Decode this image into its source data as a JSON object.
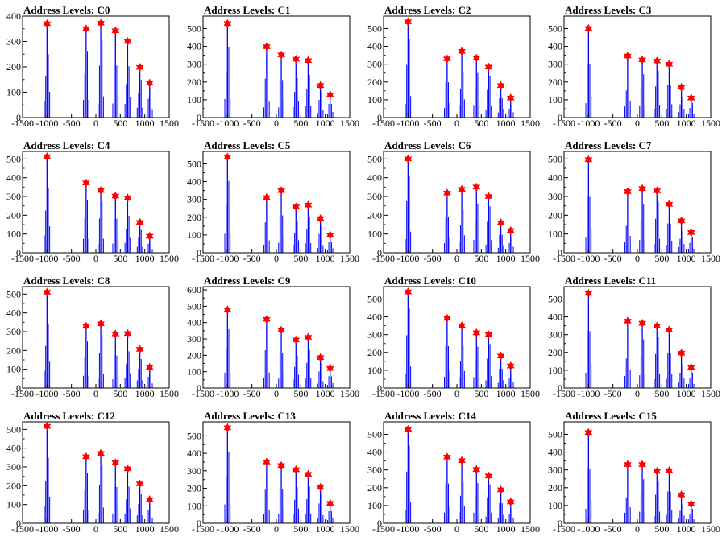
{
  "chart_data": [
    {
      "type": "histogram",
      "title": "Address Levels: C0",
      "xlim": [
        -1500,
        1500
      ],
      "ylim": [
        0,
        400
      ],
      "yticks": [
        0,
        100,
        200,
        300,
        400
      ],
      "xticks": [
        -1500,
        -1000,
        -500,
        0,
        500,
        1000,
        1500
      ],
      "xtick_labels": [
        "-1500",
        "-1000",
        "-500",
        "0",
        "500",
        "1000",
        "1500"
      ],
      "peaks": [
        {
          "x": -1000,
          "y": 370
        },
        {
          "x": -200,
          "y": 350
        },
        {
          "x": 100,
          "y": 372
        },
        {
          "x": 400,
          "y": 342
        },
        {
          "x": 650,
          "y": 300
        },
        {
          "x": 900,
          "y": 198
        },
        {
          "x": 1100,
          "y": 136
        }
      ]
    },
    {
      "type": "histogram",
      "title": "Address Levels: C1",
      "xlim": [
        -1500,
        1500
      ],
      "ylim": [
        0,
        570
      ],
      "yticks": [
        0,
        100,
        200,
        300,
        400,
        500
      ],
      "xticks": [
        -1500,
        -1000,
        -500,
        0,
        500,
        1000,
        1500
      ],
      "xtick_labels": [
        "-1500",
        "-1000",
        "-500",
        "0",
        "500",
        "1000",
        "1500"
      ],
      "peaks": [
        {
          "x": -1000,
          "y": 528
        },
        {
          "x": -200,
          "y": 398
        },
        {
          "x": 100,
          "y": 352
        },
        {
          "x": 400,
          "y": 328
        },
        {
          "x": 650,
          "y": 320
        },
        {
          "x": 900,
          "y": 180
        },
        {
          "x": 1100,
          "y": 128
        }
      ]
    },
    {
      "type": "histogram",
      "title": "Address Levels: C2",
      "xlim": [
        -1500,
        1500
      ],
      "ylim": [
        0,
        570
      ],
      "yticks": [
        0,
        100,
        200,
        300,
        400,
        500
      ],
      "xticks": [
        -1500,
        -1000,
        -500,
        0,
        500,
        1000,
        1500
      ],
      "xtick_labels": [
        "-1500",
        "-1000",
        "-500",
        "0",
        "500",
        "1000",
        "1500"
      ],
      "peaks": [
        {
          "x": -1000,
          "y": 538
        },
        {
          "x": -200,
          "y": 330
        },
        {
          "x": 100,
          "y": 372
        },
        {
          "x": 400,
          "y": 334
        },
        {
          "x": 650,
          "y": 284
        },
        {
          "x": 900,
          "y": 180
        },
        {
          "x": 1100,
          "y": 110
        }
      ]
    },
    {
      "type": "histogram",
      "title": "Address Levels: C3",
      "xlim": [
        -1500,
        1500
      ],
      "ylim": [
        0,
        570
      ],
      "yticks": [
        0,
        100,
        200,
        300,
        400,
        500
      ],
      "xticks": [
        -1500,
        -1000,
        -500,
        0,
        500,
        1000,
        1500
      ],
      "xtick_labels": [
        "-1500",
        "-1000",
        "-500",
        "0",
        "500",
        "1000",
        "1500"
      ],
      "peaks": [
        {
          "x": -1000,
          "y": 500
        },
        {
          "x": -200,
          "y": 346
        },
        {
          "x": 100,
          "y": 324
        },
        {
          "x": 400,
          "y": 318
        },
        {
          "x": 650,
          "y": 300
        },
        {
          "x": 900,
          "y": 170
        },
        {
          "x": 1100,
          "y": 110
        }
      ]
    },
    {
      "type": "histogram",
      "title": "Address Levels: C4",
      "xlim": [
        -1500,
        1500
      ],
      "ylim": [
        0,
        540
      ],
      "yticks": [
        0,
        100,
        200,
        300,
        400,
        500
      ],
      "xticks": [
        -1500,
        -1000,
        -500,
        0,
        500,
        1000,
        1500
      ],
      "xtick_labels": [
        "-1500",
        "-1000",
        "-500",
        "0",
        "500",
        "1000",
        "1500"
      ],
      "peaks": [
        {
          "x": -1000,
          "y": 512
        },
        {
          "x": -200,
          "y": 372
        },
        {
          "x": 100,
          "y": 332
        },
        {
          "x": 400,
          "y": 302
        },
        {
          "x": 650,
          "y": 292
        },
        {
          "x": 900,
          "y": 162
        },
        {
          "x": 1100,
          "y": 88
        }
      ]
    },
    {
      "type": "histogram",
      "title": "Address Levels: C5",
      "xlim": [
        -1500,
        1500
      ],
      "ylim": [
        0,
        570
      ],
      "yticks": [
        0,
        100,
        200,
        300,
        400,
        500
      ],
      "xticks": [
        -1500,
        -1000,
        -500,
        0,
        500,
        1000,
        1500
      ],
      "xtick_labels": [
        "-1500",
        "-1000",
        "-500",
        "0",
        "500",
        "1000",
        "1500"
      ],
      "peaks": [
        {
          "x": -1000,
          "y": 538
        },
        {
          "x": -200,
          "y": 310
        },
        {
          "x": 100,
          "y": 350
        },
        {
          "x": 400,
          "y": 258
        },
        {
          "x": 650,
          "y": 268
        },
        {
          "x": 900,
          "y": 192
        },
        {
          "x": 1100,
          "y": 100
        }
      ]
    },
    {
      "type": "histogram",
      "title": "Address Levels: C6",
      "xlim": [
        -1500,
        1500
      ],
      "ylim": [
        0,
        540
      ],
      "yticks": [
        0,
        100,
        200,
        300,
        400,
        500
      ],
      "xticks": [
        -1500,
        -1000,
        -500,
        0,
        500,
        1000,
        1500
      ],
      "xtick_labels": [
        "-1500",
        "-1000",
        "-500",
        "0",
        "500",
        "1000",
        "1500"
      ],
      "peaks": [
        {
          "x": -1000,
          "y": 500
        },
        {
          "x": -200,
          "y": 318
        },
        {
          "x": 100,
          "y": 338
        },
        {
          "x": 400,
          "y": 350
        },
        {
          "x": 650,
          "y": 300
        },
        {
          "x": 900,
          "y": 160
        },
        {
          "x": 1100,
          "y": 118
        }
      ]
    },
    {
      "type": "histogram",
      "title": "Address Levels: C7",
      "xlim": [
        -1500,
        1500
      ],
      "ylim": [
        0,
        540
      ],
      "yticks": [
        0,
        100,
        200,
        300,
        400,
        500
      ],
      "xticks": [
        -1500,
        -1000,
        -500,
        0,
        500,
        1000,
        1500
      ],
      "xtick_labels": [
        "-1500",
        "-1000",
        "-500",
        "0",
        "500",
        "1000",
        "1500"
      ],
      "peaks": [
        {
          "x": -1000,
          "y": 496
        },
        {
          "x": -200,
          "y": 326
        },
        {
          "x": 100,
          "y": 342
        },
        {
          "x": 400,
          "y": 330
        },
        {
          "x": 650,
          "y": 258
        },
        {
          "x": 900,
          "y": 170
        },
        {
          "x": 1100,
          "y": 108
        }
      ]
    },
    {
      "type": "histogram",
      "title": "Address Levels: C8",
      "xlim": [
        -1500,
        1500
      ],
      "ylim": [
        0,
        540
      ],
      "yticks": [
        0,
        100,
        200,
        300,
        400,
        500
      ],
      "xticks": [
        -1500,
        -1000,
        -500,
        0,
        500,
        1000,
        1500
      ],
      "xtick_labels": [
        "-1500",
        "-1000",
        "-500",
        "0",
        "500",
        "1000",
        "1500"
      ],
      "peaks": [
        {
          "x": -1000,
          "y": 510
        },
        {
          "x": -200,
          "y": 330
        },
        {
          "x": 100,
          "y": 342
        },
        {
          "x": 400,
          "y": 288
        },
        {
          "x": 650,
          "y": 290
        },
        {
          "x": 900,
          "y": 206
        },
        {
          "x": 1100,
          "y": 110
        }
      ]
    },
    {
      "type": "histogram",
      "title": "Address Levels: C9",
      "xlim": [
        -1500,
        1500
      ],
      "ylim": [
        0,
        620
      ],
      "yticks": [
        0,
        100,
        200,
        300,
        400,
        500,
        600
      ],
      "xticks": [
        -1500,
        -1000,
        -500,
        0,
        500,
        1000,
        1500
      ],
      "xtick_labels": [
        "-1500",
        "-1000",
        "-500",
        "0",
        "500",
        "1000",
        "1500"
      ],
      "peaks": [
        {
          "x": -1000,
          "y": 478
        },
        {
          "x": -200,
          "y": 420
        },
        {
          "x": 100,
          "y": 354
        },
        {
          "x": 400,
          "y": 294
        },
        {
          "x": 650,
          "y": 310
        },
        {
          "x": 900,
          "y": 186
        },
        {
          "x": 1100,
          "y": 120
        }
      ]
    },
    {
      "type": "histogram",
      "title": "Address Levels: C10",
      "xlim": [
        -1500,
        1500
      ],
      "ylim": [
        0,
        570
      ],
      "yticks": [
        0,
        100,
        200,
        300,
        400,
        500
      ],
      "xticks": [
        -1500,
        -1000,
        -500,
        0,
        500,
        1000,
        1500
      ],
      "xtick_labels": [
        "-1500",
        "-1000",
        "-500",
        "0",
        "500",
        "1000",
        "1500"
      ],
      "peaks": [
        {
          "x": -1000,
          "y": 540
        },
        {
          "x": -200,
          "y": 392
        },
        {
          "x": 100,
          "y": 350
        },
        {
          "x": 400,
          "y": 310
        },
        {
          "x": 650,
          "y": 300
        },
        {
          "x": 900,
          "y": 180
        },
        {
          "x": 1100,
          "y": 124
        }
      ]
    },
    {
      "type": "histogram",
      "title": "Address Levels: C11",
      "xlim": [
        -1500,
        1500
      ],
      "ylim": [
        0,
        570
      ],
      "yticks": [
        0,
        100,
        200,
        300,
        400,
        500
      ],
      "xticks": [
        -1500,
        -1000,
        -500,
        0,
        500,
        1000,
        1500
      ],
      "xtick_labels": [
        "-1500",
        "-1000",
        "-500",
        "0",
        "500",
        "1000",
        "1500"
      ],
      "peaks": [
        {
          "x": -1000,
          "y": 532
        },
        {
          "x": -200,
          "y": 376
        },
        {
          "x": 100,
          "y": 364
        },
        {
          "x": 400,
          "y": 348
        },
        {
          "x": 650,
          "y": 326
        },
        {
          "x": 900,
          "y": 196
        },
        {
          "x": 1100,
          "y": 116
        }
      ]
    },
    {
      "type": "histogram",
      "title": "Address Levels: C12",
      "xlim": [
        -1500,
        1500
      ],
      "ylim": [
        0,
        540
      ],
      "yticks": [
        0,
        100,
        200,
        300,
        400,
        500
      ],
      "xticks": [
        -1500,
        -1000,
        -500,
        0,
        500,
        1000,
        1500
      ],
      "xtick_labels": [
        "-1500",
        "-1000",
        "-500",
        "0",
        "500",
        "1000",
        "1500"
      ],
      "peaks": [
        {
          "x": -1000,
          "y": 516
        },
        {
          "x": -200,
          "y": 354
        },
        {
          "x": 100,
          "y": 372
        },
        {
          "x": 400,
          "y": 322
        },
        {
          "x": 650,
          "y": 290
        },
        {
          "x": 900,
          "y": 210
        },
        {
          "x": 1100,
          "y": 126
        }
      ]
    },
    {
      "type": "histogram",
      "title": "Address Levels: C13",
      "xlim": [
        -1500,
        1500
      ],
      "ylim": [
        0,
        580
      ],
      "yticks": [
        0,
        100,
        200,
        300,
        400,
        500
      ],
      "xticks": [
        -1500,
        -1000,
        -500,
        0,
        500,
        1000,
        1500
      ],
      "xtick_labels": [
        "-1500",
        "-1000",
        "-500",
        "0",
        "500",
        "1000",
        "1500"
      ],
      "peaks": [
        {
          "x": -1000,
          "y": 546
        },
        {
          "x": -200,
          "y": 350
        },
        {
          "x": 100,
          "y": 330
        },
        {
          "x": 400,
          "y": 306
        },
        {
          "x": 650,
          "y": 280
        },
        {
          "x": 900,
          "y": 206
        },
        {
          "x": 1100,
          "y": 114
        }
      ]
    },
    {
      "type": "histogram",
      "title": "Address Levels: C14",
      "xlim": [
        -1500,
        1500
      ],
      "ylim": [
        0,
        570
      ],
      "yticks": [
        0,
        100,
        200,
        300,
        400,
        500
      ],
      "xticks": [
        -1500,
        -1000,
        -500,
        0,
        500,
        1000,
        1500
      ],
      "xtick_labels": [
        "-1500",
        "-1000",
        "-500",
        "0",
        "500",
        "1000",
        "1500"
      ],
      "peaks": [
        {
          "x": -1000,
          "y": 528
        },
        {
          "x": -200,
          "y": 372
        },
        {
          "x": 100,
          "y": 352
        },
        {
          "x": 400,
          "y": 302
        },
        {
          "x": 650,
          "y": 266
        },
        {
          "x": 900,
          "y": 188
        },
        {
          "x": 1100,
          "y": 120
        }
      ]
    },
    {
      "type": "histogram",
      "title": "Address Levels: C15",
      "xlim": [
        -1500,
        1500
      ],
      "ylim": [
        0,
        570
      ],
      "yticks": [
        0,
        100,
        200,
        300,
        400,
        500
      ],
      "xticks": [
        -1500,
        -1000,
        -500,
        0,
        500,
        1000,
        1500
      ],
      "xtick_labels": [
        "-1500",
        "-1000",
        "-500",
        "0",
        "500",
        "1000",
        "1500"
      ],
      "peaks": [
        {
          "x": -1000,
          "y": 510
        },
        {
          "x": -200,
          "y": 330
        },
        {
          "x": 100,
          "y": 330
        },
        {
          "x": 400,
          "y": 292
        },
        {
          "x": 650,
          "y": 296
        },
        {
          "x": 900,
          "y": 160
        },
        {
          "x": 1100,
          "y": 108
        }
      ]
    }
  ],
  "colors": {
    "histogram": "#0000ff",
    "marker": "#ff0000",
    "axis": "#000000",
    "background": "#ffffff"
  }
}
